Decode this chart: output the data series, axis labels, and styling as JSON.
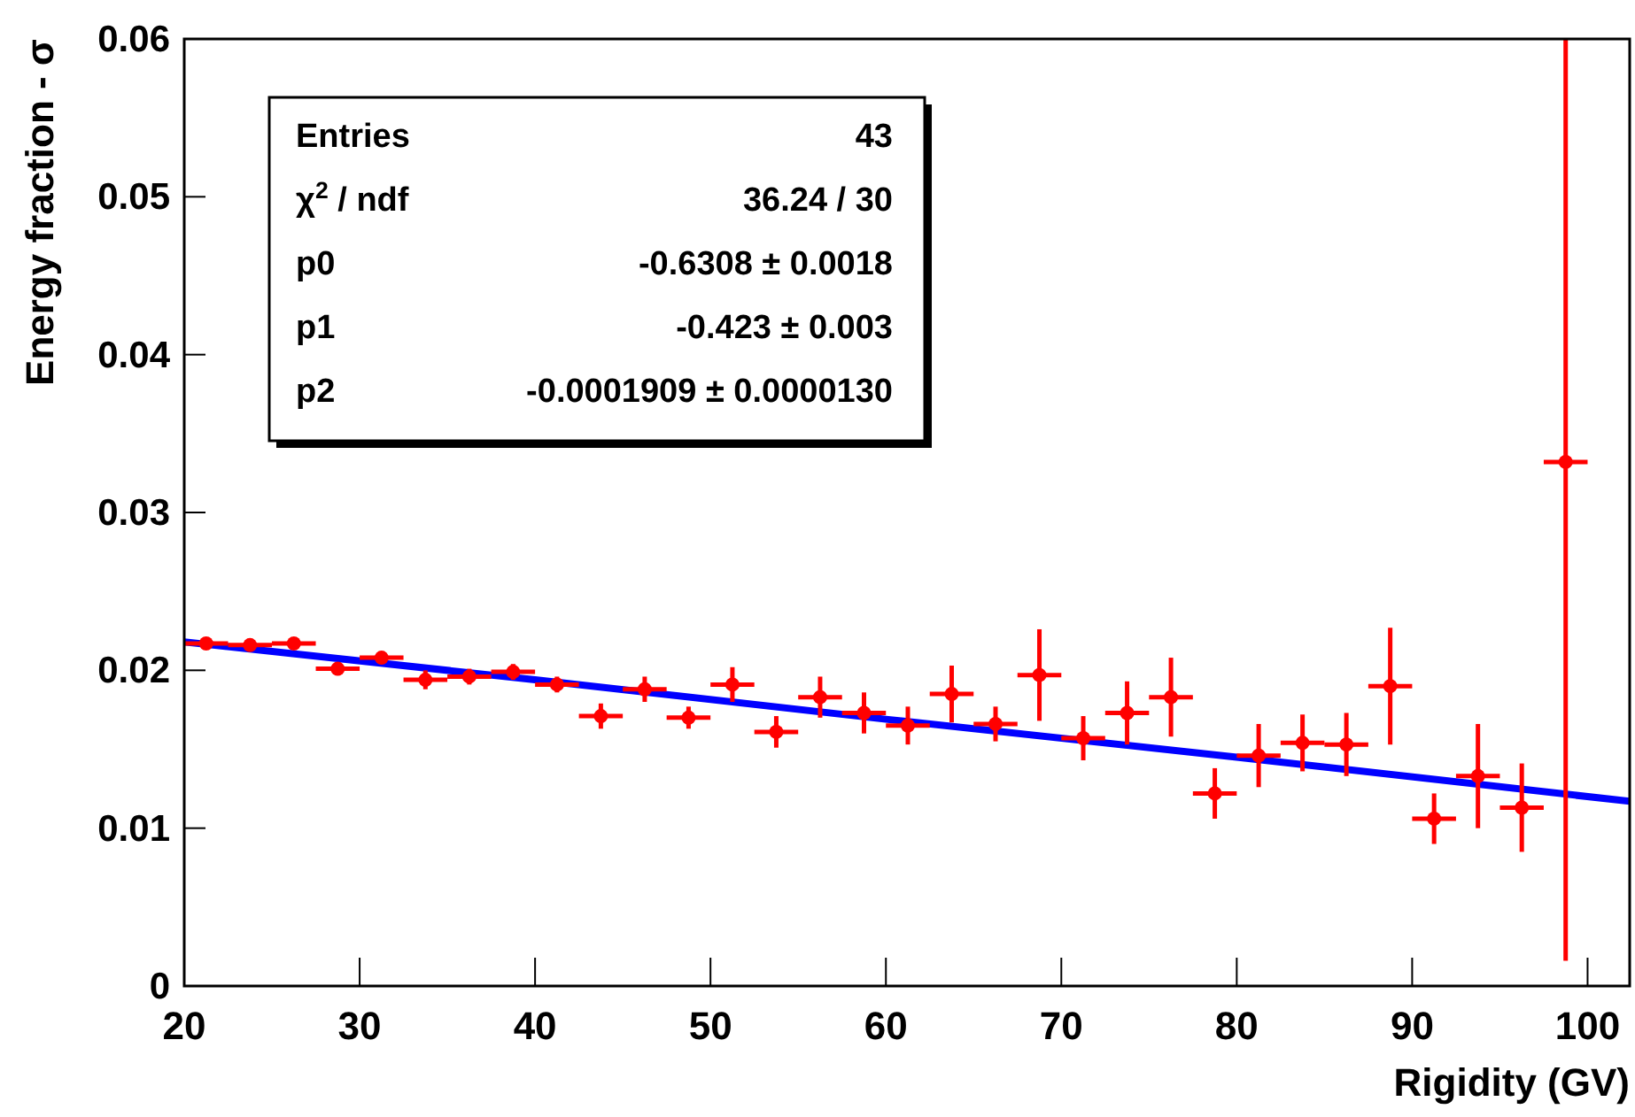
{
  "chart_data": {
    "type": "scatter",
    "xlabel": "Rigidity (GV)",
    "ylabel": "Energy fraction - σ",
    "xlim": [
      20,
      102.4
    ],
    "xticks": [
      20,
      30,
      40,
      50,
      60,
      70,
      80,
      90,
      100
    ],
    "ylim": [
      0,
      0.06
    ],
    "yticks": [
      0,
      0.01,
      0.02,
      0.03,
      0.04,
      0.05,
      0.06
    ],
    "grid": false,
    "marker": "circle",
    "annotations": [
      "Entries",
      "43",
      "χ$^{2}$ / ndf",
      "36.24 / 30",
      "p0",
      "-0.6308 ± 0.0018",
      "p1",
      "-0.423 ± 0.003",
      "p2",
      "-0.0001909 ± 0.0000130"
    ],
    "series": [
      {
        "color": "#ff0000",
        "x": [
          21.25,
          23.75,
          26.25,
          28.75,
          31.25,
          33.75,
          36.25,
          38.75,
          41.25,
          43.75,
          46.25,
          48.75,
          51.25,
          53.75,
          56.25,
          58.75,
          61.25,
          63.75,
          66.25,
          68.75,
          71.25,
          73.75,
          76.25,
          78.75,
          81.25,
          83.75,
          86.25,
          88.75,
          91.25,
          93.75,
          96.25,
          98.75
        ],
        "values": [
          0.0217,
          0.0216,
          0.0217,
          0.0201,
          0.0208,
          0.0194,
          0.0196,
          0.0199,
          0.0191,
          0.0171,
          0.0188,
          0.017,
          0.0191,
          0.0161,
          0.0183,
          0.0173,
          0.0165,
          0.0185,
          0.0166,
          0.0197,
          0.0157,
          0.0173,
          0.0183,
          0.0122,
          0.0146,
          0.0154,
          0.0153,
          0.019,
          0.0106,
          0.0133,
          0.0113,
          0.0332
        ],
        "errors": [
          0.0001,
          0.0001,
          0.0001,
          0.0002,
          0.0003,
          0.0006,
          0.0005,
          0.0005,
          0.0005,
          0.0008,
          0.0008,
          0.0007,
          0.0011,
          0.001,
          0.0013,
          0.0013,
          0.0012,
          0.0018,
          0.0011,
          0.0029,
          0.0014,
          0.002,
          0.0025,
          0.0016,
          0.002,
          0.0018,
          0.002,
          0.0037,
          0.0016,
          0.0033,
          0.0028,
          [
            0.0016,
            0.06
          ]
        ],
        "xerrors": [
          1.25,
          1.25,
          1.25,
          1.25,
          1.25,
          1.25,
          1.25,
          1.25,
          1.25,
          1.25,
          1.25,
          1.25,
          1.25,
          1.25,
          1.25,
          1.25,
          1.25,
          1.25,
          1.25,
          1.25,
          1.25,
          1.25,
          1.25,
          1.25,
          1.25,
          1.25,
          1.25,
          1.25,
          1.25,
          1.25,
          1.25,
          1.25
        ]
      },
      {
        "type": "line",
        "color": "#0000ff",
        "line_style": "solid",
        "marker": "none",
        "x": [
          20,
          40,
          60,
          80,
          102.4
        ],
        "values": [
          0.0218,
          0.0194,
          0.0169,
          0.0145,
          0.0117
        ]
      }
    ]
  }
}
